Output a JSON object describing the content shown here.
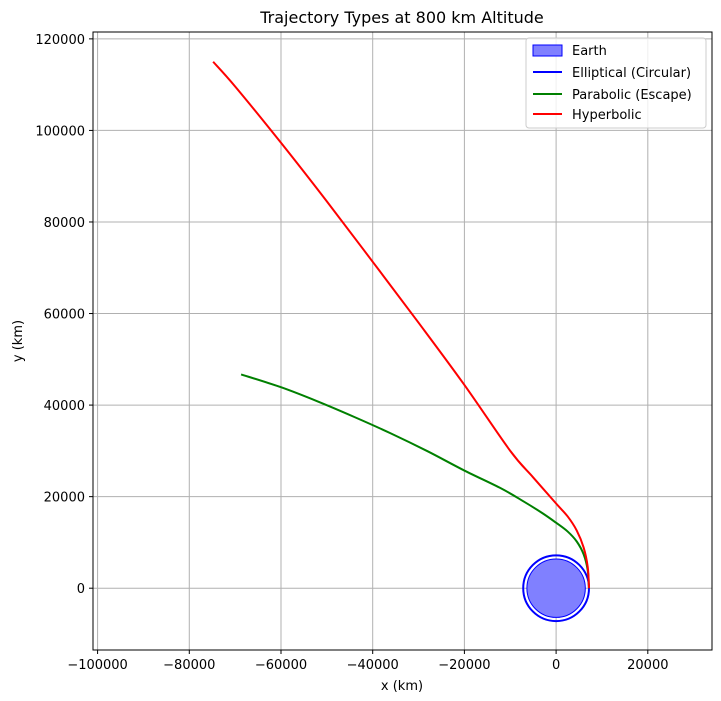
{
  "chart_data": {
    "type": "line",
    "title": "Trajectory Types at 800 km Altitude",
    "xlabel": "x (km)",
    "ylabel": "y (km)",
    "xlim": [
      -101000,
      34000
    ],
    "ylim": [
      -13500,
      121500
    ],
    "xticks": [
      -100000,
      -80000,
      -60000,
      -40000,
      -20000,
      0,
      20000
    ],
    "xtick_labels": [
      "−100000",
      "−80000",
      "−60000",
      "−40000",
      "−20000",
      "0",
      "20000"
    ],
    "yticks": [
      0,
      20000,
      40000,
      60000,
      80000,
      100000,
      120000
    ],
    "ytick_labels": [
      "0",
      "20000",
      "40000",
      "60000",
      "80000",
      "100000",
      "120000"
    ],
    "grid": true,
    "legend_position": "top-right",
    "earth": {
      "name": "Earth",
      "center": [
        0,
        0
      ],
      "radius": 6371,
      "color": "#8080ff"
    },
    "series": [
      {
        "name": "Elliptical (Circular)",
        "color": "#0000ff",
        "kind": "circle",
        "center": [
          0,
          0
        ],
        "radius": 7171
      },
      {
        "name": "Parabolic (Escape)",
        "color": "#008000",
        "kind": "curve",
        "x": [
          7171,
          6900,
          6000,
          4500,
          2500,
          0,
          -3000,
          -7000,
          -12000,
          -20000,
          -28000,
          -36000,
          -44000,
          -52000,
          -60000,
          -68700
        ],
        "y": [
          0,
          3900,
          7400,
          10200,
          12400,
          14300,
          16400,
          18900,
          21800,
          25700,
          29900,
          33800,
          37400,
          40800,
          43900,
          46700
        ]
      },
      {
        "name": "Hyperbolic",
        "color": "#ff0000",
        "kind": "curve",
        "x": [
          7171,
          6900,
          6000,
          4500,
          2500,
          0,
          -5000,
          -10000,
          -20000,
          -30000,
          -40000,
          -50000,
          -60000,
          -70000,
          -74800
        ],
        "y": [
          0,
          4600,
          8900,
          12600,
          15700,
          18500,
          24200,
          30000,
          44400,
          58000,
          71300,
          84500,
          97300,
          109600,
          115000
        ]
      }
    ]
  }
}
